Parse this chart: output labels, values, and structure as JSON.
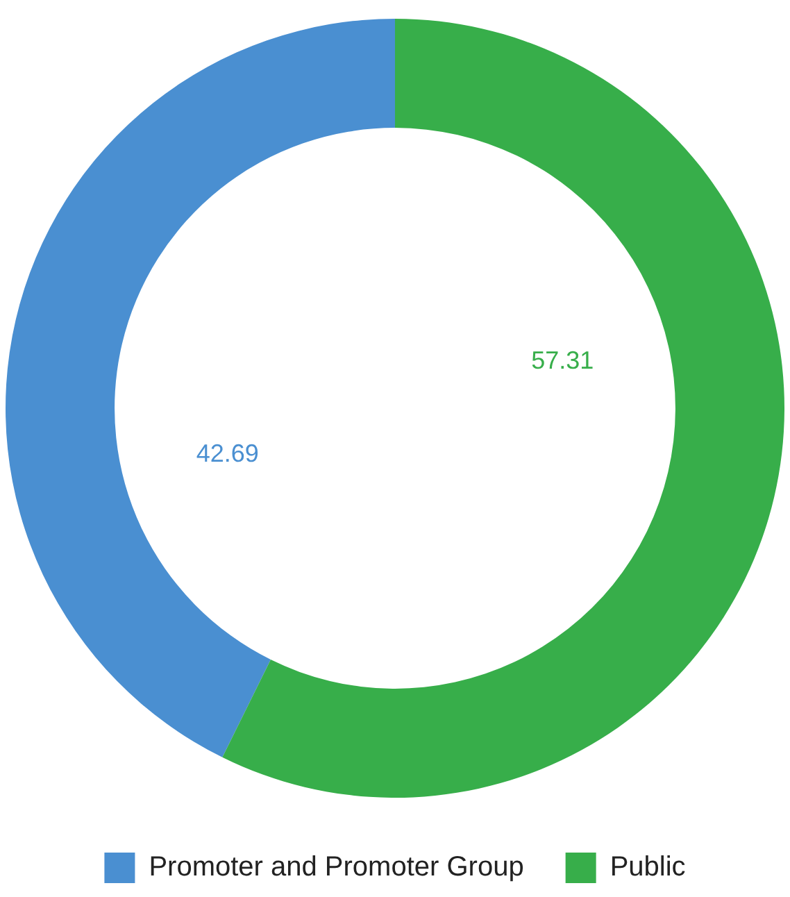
{
  "chart_data": {
    "type": "donut",
    "categories": [
      "Promoter and Promoter Group",
      "Public"
    ],
    "values": [
      42.69,
      57.31
    ],
    "colors": [
      "#4a8fd1",
      "#37ae4a"
    ],
    "data_labels": true,
    "legend": "bottom"
  }
}
